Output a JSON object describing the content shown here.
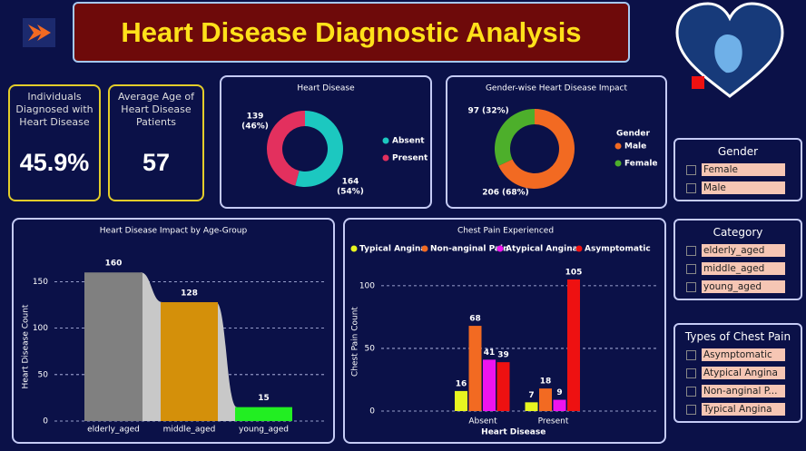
{
  "header": {
    "title": "Heart Disease Diagnostic Analysis"
  },
  "kpis": [
    {
      "label": "Individuals Diagnosed with Heart Disease",
      "value": "45.9%"
    },
    {
      "label": "Average Age of Heart Disease Patients",
      "value": "57"
    }
  ],
  "chart_data": [
    {
      "type": "donut",
      "title": "Heart Disease",
      "categories": [
        "Absent",
        "Present"
      ],
      "values": [
        164,
        139
      ],
      "percent_labels": [
        "(54%)",
        "(46%)"
      ],
      "colors": [
        "#1cc8c0",
        "#e3305e"
      ]
    },
    {
      "type": "donut",
      "title": "Gender-wise Heart Disease Impact",
      "legend_title": "Gender",
      "categories": [
        "Male",
        "Female"
      ],
      "values": [
        206,
        97
      ],
      "percent_labels": [
        "(68%)",
        "(32%)"
      ],
      "colors": [
        "#f26a22",
        "#4daf2b"
      ]
    },
    {
      "type": "ribbon",
      "title": "Heart Disease Impact by Age-Group",
      "y_label": "Heart Disease Count",
      "categories": [
        "elderly_aged",
        "middle_aged",
        "young_aged"
      ],
      "values": [
        160,
        128,
        15
      ],
      "colors": [
        "#808080",
        "#d4900a",
        "#22ee22"
      ],
      "ylim": [
        0,
        170
      ],
      "yticks": [
        0,
        50,
        100,
        150
      ],
      "grid": true
    },
    {
      "type": "bar",
      "title": "Chest Pain Experienced",
      "x_label": "Heart Disease",
      "y_label": "Chest Pain Count",
      "categories": [
        "Absent",
        "Present"
      ],
      "series": [
        {
          "name": "Typical Angina",
          "color": "#e8f520",
          "values": [
            16,
            7
          ]
        },
        {
          "name": "Non-anginal Pain",
          "color": "#f26a22",
          "values": [
            68,
            18
          ]
        },
        {
          "name": "Atypical Angina",
          "color": "#ee14ee",
          "values": [
            41,
            9
          ]
        },
        {
          "name": "Asymptomatic",
          "color": "#ee1111",
          "values": [
            39,
            105
          ]
        }
      ],
      "ylim": [
        0,
        118
      ],
      "yticks": [
        0,
        50,
        100
      ],
      "grid": true
    }
  ],
  "slicers": [
    {
      "title": "Gender",
      "items": [
        "Female",
        "Male"
      ]
    },
    {
      "title": "Category",
      "items": [
        "elderly_aged",
        "middle_aged",
        "young_aged"
      ]
    },
    {
      "title": "Types of Chest Pain",
      "items": [
        "Asymptomatic",
        "Atypical Angina",
        "Non-anginal P...",
        "Typical Angina"
      ]
    }
  ]
}
